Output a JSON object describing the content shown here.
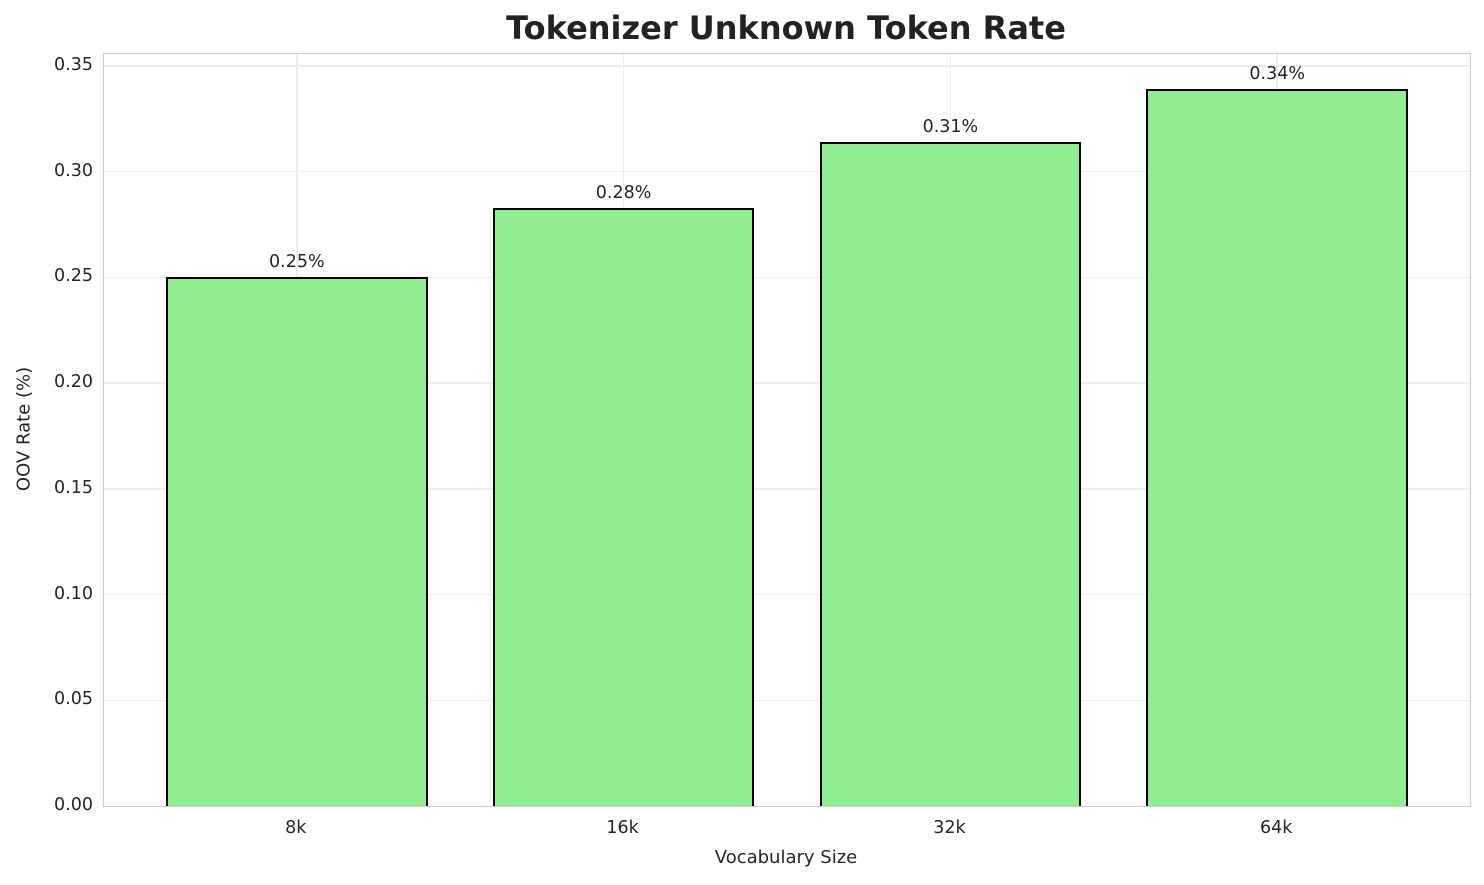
{
  "chart_data": {
    "type": "bar",
    "title": "Tokenizer Unknown Token Rate",
    "xlabel": "Vocabulary Size",
    "ylabel": "OOV Rate (%)",
    "categories": [
      "8k",
      "16k",
      "32k",
      "64k"
    ],
    "values": [
      0.25,
      0.283,
      0.314,
      0.339
    ],
    "data_labels": [
      "0.25%",
      "0.28%",
      "0.31%",
      "0.34%"
    ],
    "yticks": [
      0.0,
      0.05,
      0.1,
      0.15,
      0.2,
      0.25,
      0.3,
      0.35
    ],
    "ytick_labels": [
      "0.00",
      "0.05",
      "0.10",
      "0.15",
      "0.20",
      "0.25",
      "0.30",
      "0.35"
    ],
    "ylim": [
      0,
      0.3556
    ],
    "grid": true,
    "legend_position": "none",
    "bar_color": "#90EE90",
    "bar_edge_color": "#000000",
    "grid_color": "#ececec",
    "spine_color": "#cccccc",
    "text_color": "#262626"
  }
}
